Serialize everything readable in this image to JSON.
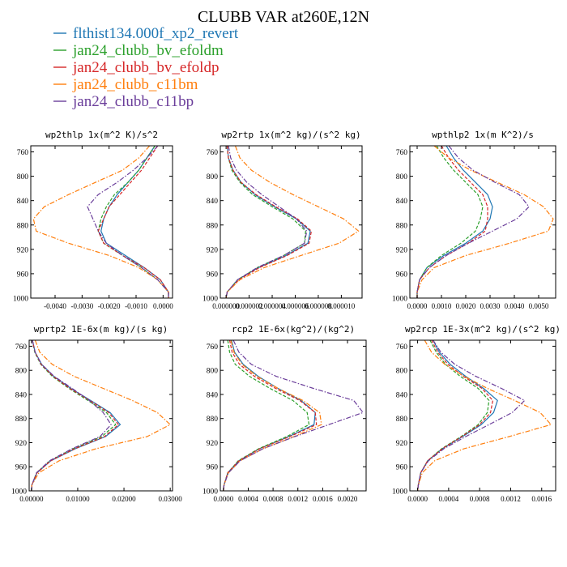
{
  "figure": {
    "title": "CLUBB VAR at260E,12N",
    "legend": [
      {
        "name": "flthist134.000f_xp2_revert",
        "color": "#1f77b4",
        "dash": "solid"
      },
      {
        "name": "jan24_clubb_bv_efoldm",
        "color": "#2ca02c",
        "dash": "dashed"
      },
      {
        "name": "jan24_clubb_bv_efoldp",
        "color": "#d62728",
        "dash": "dashed"
      },
      {
        "name": "jan24_clubb_c11bm",
        "color": "#ff7f0e",
        "dash": "dashdot"
      },
      {
        "name": "jan24_clubb_c11bp",
        "color": "#6a3d9a",
        "dash": "dashdot"
      }
    ]
  },
  "chart_data": [
    {
      "type": "line",
      "title": "wp2thlp  1x(m^2 K)/s^2",
      "xlim": [
        -0.0049,
        0.00035
      ],
      "ylim": [
        750,
        1000
      ],
      "y_reversed": true,
      "xticks": [
        -0.004,
        -0.003,
        -0.002,
        -0.001,
        0.0
      ],
      "xtick_labels": [
        "-0.0040",
        "-0.0030",
        "-0.0020",
        "-0.0010",
        "0.0000"
      ],
      "yticks": [
        760,
        800,
        840,
        880,
        920,
        960,
        1000
      ],
      "y": [
        750,
        770,
        790,
        810,
        830,
        850,
        870,
        890,
        910,
        930,
        950,
        970,
        990,
        1000
      ],
      "series": [
        {
          "name": "flthist134.000f_xp2_revert",
          "values": [
            -0.0003,
            -0.0006,
            -0.0009,
            -0.0013,
            -0.0017,
            -0.002,
            -0.0022,
            -0.0023,
            -0.0021,
            -0.0014,
            -0.0007,
            -0.0001,
            0.0002,
            0.0002
          ]
        },
        {
          "name": "jan24_clubb_bv_efoldm",
          "values": [
            -0.0003,
            -0.0006,
            -0.0009,
            -0.0013,
            -0.0018,
            -0.0021,
            -0.0023,
            -0.0024,
            -0.0022,
            -0.0015,
            -0.0008,
            -0.0002,
            0.0002,
            0.0002
          ]
        },
        {
          "name": "jan24_clubb_bv_efoldp",
          "values": [
            -0.0002,
            -0.0005,
            -0.0008,
            -0.0012,
            -0.0016,
            -0.002,
            -0.0022,
            -0.0024,
            -0.0022,
            -0.0015,
            -0.0007,
            -0.0001,
            0.0002,
            0.0002
          ]
        },
        {
          "name": "jan24_clubb_c11bm",
          "values": [
            -0.0005,
            -0.0009,
            -0.0015,
            -0.0025,
            -0.0035,
            -0.0044,
            -0.0048,
            -0.0047,
            -0.0035,
            -0.002,
            -0.0009,
            -0.0002,
            0.0002,
            0.0002
          ]
        },
        {
          "name": "jan24_clubb_c11bp",
          "values": [
            -0.0002,
            -0.0006,
            -0.0011,
            -0.0017,
            -0.0024,
            -0.0028,
            -0.0026,
            -0.0024,
            -0.0021,
            -0.0015,
            -0.0008,
            -0.0002,
            0.0002,
            0.0002
          ]
        }
      ]
    },
    {
      "type": "line",
      "title": "wp2rtp  1x(m^2 kg)/(s^2 kg)",
      "xlim": [
        -5e-07,
        1.18e-05
      ],
      "ylim": [
        750,
        1000
      ],
      "y_reversed": true,
      "xticks": [
        0.0,
        2e-06,
        4e-06,
        6e-06,
        8e-06,
        1e-05
      ],
      "xtick_labels": [
        "0.000000",
        "0.000002",
        "0.000004",
        "0.000006",
        "0.000008",
        "0.000010"
      ],
      "yticks": [
        760,
        800,
        840,
        880,
        920,
        960,
        1000
      ],
      "y": [
        750,
        770,
        790,
        810,
        830,
        850,
        870,
        890,
        910,
        930,
        950,
        970,
        990,
        1000
      ],
      "series": [
        {
          "name": "flthist134.000f_xp2_revert",
          "values": [
            1e-07,
            2e-07,
            6e-07,
            1.3e-06,
            2.5e-06,
            4.2e-06,
            6.1e-06,
            7.3e-06,
            7.1e-06,
            5.2e-06,
            2.8e-06,
            1e-06,
            1e-07,
            0.0
          ]
        },
        {
          "name": "jan24_clubb_bv_efoldm",
          "values": [
            1e-07,
            2e-07,
            5e-07,
            1.2e-06,
            2.3e-06,
            4e-06,
            5.8e-06,
            6.9e-06,
            6.8e-06,
            5e-06,
            2.7e-06,
            1e-06,
            1e-07,
            0.0
          ]
        },
        {
          "name": "jan24_clubb_bv_efoldp",
          "values": [
            1e-07,
            2e-07,
            6e-07,
            1.3e-06,
            2.6e-06,
            4.3e-06,
            6.2e-06,
            7.4e-06,
            7.2e-06,
            5.3e-06,
            2.9e-06,
            1.1e-06,
            1e-07,
            0.0
          ]
        },
        {
          "name": "jan24_clubb_c11bm",
          "values": [
            8e-07,
            1.2e-06,
            2.2e-06,
            3.8e-06,
            5.8e-06,
            8e-06,
            1.02e-05,
            1.15e-05,
            9.8e-06,
            6.5e-06,
            3.3e-06,
            1.2e-06,
            1e-07,
            0.0
          ]
        },
        {
          "name": "jan24_clubb_c11bp",
          "values": [
            2e-07,
            4e-07,
            9e-07,
            1.8e-06,
            3.1e-06,
            4.6e-06,
            6.1e-06,
            7e-06,
            6.8e-06,
            5e-06,
            2.7e-06,
            1e-06,
            1e-07,
            0.0
          ]
        }
      ]
    },
    {
      "type": "line",
      "title": "wpthlp2  1x(m K^2)/s",
      "xlim": [
        -0.0003,
        0.0057
      ],
      "ylim": [
        750,
        1000
      ],
      "y_reversed": true,
      "xticks": [
        0.0,
        0.001,
        0.002,
        0.003,
        0.004,
        0.005
      ],
      "xtick_labels": [
        "0.0000",
        "0.0010",
        "0.0020",
        "0.0030",
        "0.0040",
        "0.0050"
      ],
      "yticks": [
        760,
        800,
        840,
        880,
        920,
        960,
        1000
      ],
      "y": [
        750,
        770,
        790,
        810,
        830,
        850,
        870,
        890,
        910,
        930,
        950,
        970,
        990,
        1000
      ],
      "series": [
        {
          "name": "flthist134.000f_xp2_revert",
          "values": [
            0.0012,
            0.0015,
            0.0019,
            0.0024,
            0.0029,
            0.0031,
            0.003,
            0.0027,
            0.002,
            0.0011,
            0.0004,
            0.0001,
            0.0,
            0.0
          ]
        },
        {
          "name": "jan24_clubb_bv_efoldm",
          "values": [
            0.0008,
            0.0011,
            0.0015,
            0.002,
            0.0025,
            0.0027,
            0.0026,
            0.0024,
            0.0018,
            0.001,
            0.0004,
            0.0001,
            0.0,
            0.0
          ]
        },
        {
          "name": "jan24_clubb_bv_efoldp",
          "values": [
            0.001,
            0.0013,
            0.0017,
            0.0022,
            0.0027,
            0.0029,
            0.0029,
            0.0028,
            0.0021,
            0.0012,
            0.0005,
            0.0001,
            0.0,
            0.0
          ]
        },
        {
          "name": "jan24_clubb_c11bm",
          "values": [
            0.0007,
            0.0013,
            0.0022,
            0.0033,
            0.0044,
            0.0052,
            0.0056,
            0.0054,
            0.0038,
            0.002,
            0.0007,
            0.0002,
            0.0,
            0.0
          ]
        },
        {
          "name": "jan24_clubb_c11bp",
          "values": [
            0.0013,
            0.0017,
            0.0023,
            0.0032,
            0.0042,
            0.0046,
            0.0041,
            0.0031,
            0.0021,
            0.0012,
            0.0005,
            0.0001,
            0.0,
            0.0
          ]
        }
      ]
    },
    {
      "type": "line",
      "title": "wprtp2  1E-6x(m kg)/(s kg)",
      "xlim": [
        -0.0005,
        0.0305
      ],
      "ylim": [
        750,
        1000
      ],
      "y_reversed": true,
      "xticks": [
        0.0,
        0.01,
        0.02,
        0.03
      ],
      "xtick_labels": [
        "0.00000",
        "0.01000",
        "0.02000",
        "0.03000"
      ],
      "yticks": [
        760,
        800,
        840,
        880,
        920,
        960,
        1000
      ],
      "y": [
        750,
        770,
        790,
        810,
        830,
        850,
        870,
        890,
        910,
        930,
        950,
        970,
        990,
        1000
      ],
      "series": [
        {
          "name": "flthist134.000f_xp2_revert",
          "values": [
            0.0002,
            0.0008,
            0.0022,
            0.0048,
            0.0085,
            0.0128,
            0.017,
            0.0192,
            0.016,
            0.0095,
            0.0042,
            0.0012,
            0.0001,
            0.0
          ]
        },
        {
          "name": "jan24_clubb_bv_efoldm",
          "values": [
            0.0002,
            0.0007,
            0.002,
            0.0045,
            0.0081,
            0.0122,
            0.0162,
            0.0182,
            0.0152,
            0.009,
            0.004,
            0.0011,
            0.0001,
            0.0
          ]
        },
        {
          "name": "jan24_clubb_bv_efoldp",
          "values": [
            0.0002,
            0.0008,
            0.0021,
            0.0047,
            0.0083,
            0.0126,
            0.0167,
            0.0188,
            0.0158,
            0.0094,
            0.0042,
            0.0012,
            0.0001,
            0.0
          ]
        },
        {
          "name": "jan24_clubb_c11bm",
          "values": [
            0.0008,
            0.0018,
            0.0045,
            0.0092,
            0.0155,
            0.0218,
            0.0272,
            0.03,
            0.025,
            0.014,
            0.006,
            0.0016,
            0.0001,
            0.0
          ]
        },
        {
          "name": "jan24_clubb_c11bp",
          "values": [
            0.0002,
            0.0008,
            0.0022,
            0.0049,
            0.0088,
            0.0125,
            0.0155,
            0.0172,
            0.0148,
            0.0088,
            0.0039,
            0.0011,
            0.0001,
            0.0
          ]
        }
      ]
    },
    {
      "type": "line",
      "title": "rcp2  1E-6x(kg^2)/(kg^2)",
      "xlim": [
        -5e-05,
        0.0023
      ],
      "ylim": [
        750,
        1000
      ],
      "y_reversed": true,
      "xticks": [
        0.0,
        0.0004,
        0.0008,
        0.0012,
        0.0016,
        0.002
      ],
      "xtick_labels": [
        "0.0000",
        "0.0004",
        "0.0008",
        "0.0012",
        "0.0016",
        "0.0020"
      ],
      "yticks": [
        760,
        800,
        840,
        880,
        920,
        960,
        1000
      ],
      "y": [
        750,
        770,
        790,
        810,
        830,
        850,
        870,
        890,
        910,
        930,
        950,
        970,
        990,
        1000
      ],
      "series": [
        {
          "name": "flthist134.000f_xp2_revert",
          "values": [
            0.00013,
            0.00018,
            0.00032,
            0.00056,
            0.00088,
            0.00125,
            0.00148,
            0.00146,
            0.00105,
            0.00058,
            0.00025,
            7e-05,
            1e-05,
            0.0
          ]
        },
        {
          "name": "jan24_clubb_bv_efoldm",
          "values": [
            7e-05,
            0.0001,
            0.00019,
            0.00042,
            0.00075,
            0.00112,
            0.00135,
            0.00138,
            0.00102,
            0.00057,
            0.00024,
            7e-05,
            1e-05,
            0.0
          ]
        },
        {
          "name": "jan24_clubb_bv_efoldp",
          "values": [
            0.0001,
            0.00014,
            0.00026,
            0.0005,
            0.00084,
            0.00123,
            0.00148,
            0.0015,
            0.00107,
            0.00059,
            0.00025,
            7e-05,
            1e-05,
            0.0
          ]
        },
        {
          "name": "jan24_clubb_c11bm",
          "values": [
            0.00012,
            0.00017,
            0.0003,
            0.00054,
            0.00088,
            0.00128,
            0.00155,
            0.00158,
            0.00114,
            0.00064,
            0.00027,
            8e-05,
            1e-05,
            0.0
          ]
        },
        {
          "name": "jan24_clubb_c11bp",
          "values": [
            0.00016,
            0.00025,
            0.00045,
            0.00085,
            0.00145,
            0.0021,
            0.00225,
            0.0017,
            0.00115,
            0.00064,
            0.00027,
            8e-05,
            1e-05,
            0.0
          ]
        }
      ]
    },
    {
      "type": "line",
      "title": "wp2rcp  1E-3x(m^2 kg)/(s^2 kg)",
      "xlim": [
        -0.0001,
        0.00178
      ],
      "ylim": [
        750,
        1000
      ],
      "y_reversed": true,
      "xticks": [
        0.0,
        0.0004,
        0.0008,
        0.0012,
        0.0016
      ],
      "xtick_labels": [
        "0.0000",
        "0.0004",
        "0.0008",
        "0.0012",
        "0.0016"
      ],
      "yticks": [
        760,
        800,
        840,
        880,
        920,
        960,
        1000
      ],
      "y": [
        750,
        770,
        790,
        810,
        830,
        850,
        870,
        890,
        910,
        930,
        950,
        970,
        990,
        1000
      ],
      "series": [
        {
          "name": "flthist134.000f_xp2_revert",
          "values": [
            0.0002,
            0.00028,
            0.00042,
            0.00062,
            0.00085,
            0.00103,
            0.00098,
            0.00082,
            0.00058,
            0.00032,
            0.00013,
            4e-05,
            1e-05,
            0.0
          ]
        },
        {
          "name": "jan24_clubb_bv_efoldm",
          "values": [
            0.00016,
            0.00024,
            0.00036,
            0.00055,
            0.00078,
            0.00092,
            0.0009,
            0.00078,
            0.00056,
            0.00031,
            0.00013,
            4e-05,
            1e-05,
            0.0
          ]
        },
        {
          "name": "jan24_clubb_bv_efoldp",
          "values": [
            0.00018,
            0.00026,
            0.00039,
            0.00059,
            0.00083,
            0.00097,
            0.00094,
            0.0008,
            0.00057,
            0.00032,
            0.00013,
            4e-05,
            1e-05,
            0.0
          ]
        },
        {
          "name": "jan24_clubb_c11bm",
          "values": [
            9e-05,
            0.00018,
            0.00035,
            0.0006,
            0.0009,
            0.00125,
            0.00158,
            0.00172,
            0.00118,
            0.0006,
            0.00022,
            6e-05,
            1e-05,
            0.0
          ]
        },
        {
          "name": "jan24_clubb_c11bp",
          "values": [
            0.0002,
            0.0003,
            0.00048,
            0.00075,
            0.00108,
            0.00138,
            0.00122,
            0.00092,
            0.00062,
            0.00034,
            0.00014,
            4e-05,
            1e-05,
            0.0
          ]
        }
      ]
    }
  ]
}
